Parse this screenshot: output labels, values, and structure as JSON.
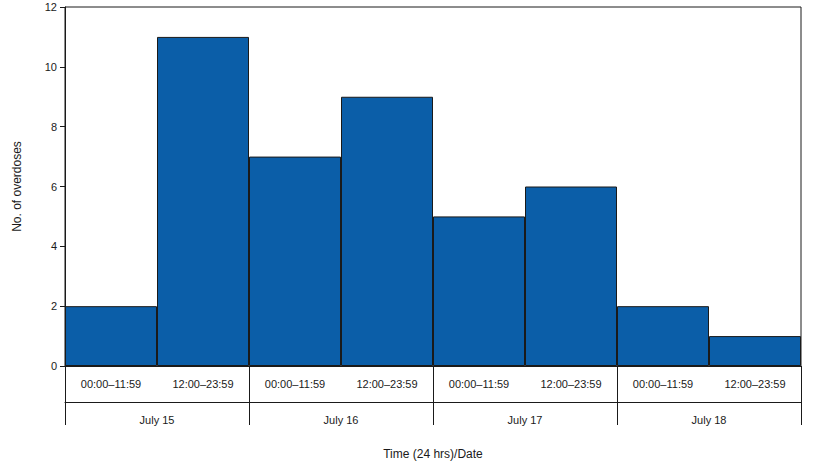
{
  "chart_data": {
    "type": "bar",
    "xlabel": "Time (24 hrs)/Date",
    "ylabel": "No. of overdoses",
    "categories": [
      "00:00–11:59",
      "12:00–23:59",
      "00:00–11:59",
      "12:00–23:59",
      "00:00–11:59",
      "12:00–23:59",
      "00:00–11:59",
      "12:00–23:59"
    ],
    "groups": [
      "July 15",
      "July 16",
      "July 17",
      "July 18"
    ],
    "values": [
      2,
      11,
      7,
      9,
      5,
      6,
      2,
      1
    ],
    "color": "#0b5ea8",
    "ylim": [
      0,
      12
    ],
    "yticks": [
      0,
      2,
      4,
      6,
      8,
      10,
      12
    ],
    "grid": false
  }
}
